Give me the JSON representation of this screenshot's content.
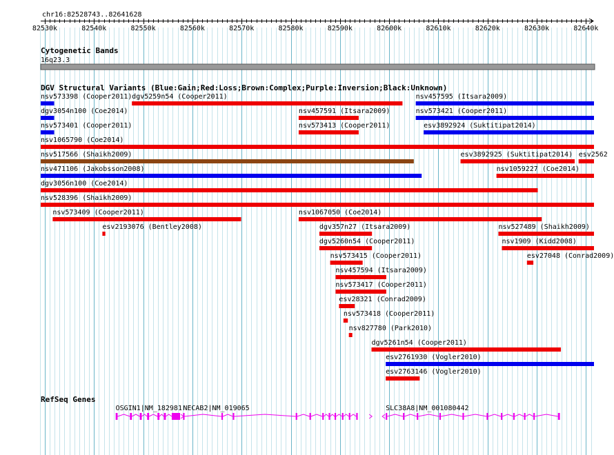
{
  "view": {
    "location": "chr16:82528743..82641628",
    "start": 82528743,
    "end": 82641628,
    "ruler_start": 82530000,
    "ruler_end": 82640000,
    "ruler_step": 10000,
    "ruler_labels": [
      "82530k",
      "82540k",
      "82550k",
      "82560k",
      "82570k",
      "82580k",
      "82590k",
      "82600k",
      "82610k",
      "82620k",
      "82630k",
      "82640k"
    ]
  },
  "colors": {
    "Gain": "#0000ee",
    "Loss": "#ee0000",
    "Complex": "#8b4513",
    "Inversion": "#800080",
    "Unknown": "#000000",
    "gene": "#ee00ee",
    "band": "#999999"
  },
  "tracks": {
    "cytoband": {
      "title": "Cytogenetic Bands",
      "band": "16q23.3"
    },
    "dgv": {
      "title": "DGV Structural Variants (Blue:Gain;Red:Loss;Brown:Complex;Purple:Inversion;Black:Unknown)",
      "features": [
        {
          "label": "nsv573398 (Cooper2011)",
          "start": 82528743,
          "end": 82531900,
          "type": "Gain",
          "row": 0
        },
        {
          "label": "dgv5259n54 (Cooper2011)",
          "start": 82547700,
          "end": 82602700,
          "type": "Loss",
          "row": 0
        },
        {
          "label": "nsv457595 (Itsara2009)",
          "start": 82605400,
          "end": 82641628,
          "type": "Gain",
          "row": 0
        },
        {
          "label": "dgv3054n100 (Coe2014)",
          "start": 82528743,
          "end": 82531900,
          "type": "Gain",
          "row": 1
        },
        {
          "label": "nsv457591 (Itsara2009)",
          "start": 82581600,
          "end": 82593800,
          "type": "Loss",
          "row": 1
        },
        {
          "label": "nsv573421 (Cooper2011)",
          "start": 82605400,
          "end": 82641628,
          "type": "Gain",
          "row": 1
        },
        {
          "label": "nsv573401 (Cooper2011)",
          "start": 82528743,
          "end": 82531900,
          "type": "Gain",
          "row": 2
        },
        {
          "label": "nsv573413 (Cooper2011)",
          "start": 82581600,
          "end": 82593800,
          "type": "Loss",
          "row": 2
        },
        {
          "label": "esv3892924 (Suktitipat2014)",
          "start": 82607000,
          "end": 82641628,
          "type": "Gain",
          "row": 2
        },
        {
          "label": "nsv1065790 (Coe2014)",
          "start": 82528743,
          "end": 82641628,
          "type": "Loss",
          "row": 3
        },
        {
          "label": "nsv517566 (Shaikh2009)",
          "start": 82528743,
          "end": 82605000,
          "type": "Complex",
          "row": 4
        },
        {
          "label": "esv3892925 (Suktitipat2014)",
          "start": 82614500,
          "end": 82637700,
          "type": "Loss",
          "row": 4
        },
        {
          "label": "esv2562",
          "start": 82638500,
          "end": 82641628,
          "type": "Loss",
          "row": 4
        },
        {
          "label": "nsv471106 (Jakobsson2008)",
          "start": 82528743,
          "end": 82606600,
          "type": "Gain",
          "row": 5
        },
        {
          "label": "nsv1059227 (Coe2014)",
          "start": 82621800,
          "end": 82641628,
          "type": "Loss",
          "row": 5
        },
        {
          "label": "dgv3056n100 (Coe2014)",
          "start": 82528743,
          "end": 82630200,
          "type": "Loss",
          "row": 6
        },
        {
          "label": "nsv528396 (Shaikh2009)",
          "start": 82528743,
          "end": 82641628,
          "type": "Loss",
          "row": 7
        },
        {
          "label": "nsv573409 (Cooper2011)",
          "start": 82531600,
          "end": 82569900,
          "type": "Loss",
          "row": 8
        },
        {
          "label": "nsv1067050 (Coe2014)",
          "start": 82581600,
          "end": 82631000,
          "type": "Loss",
          "row": 8
        },
        {
          "label": "esv2193076 (Bentley2008)",
          "start": 82541700,
          "end": 82542300,
          "type": "Loss",
          "row": 9
        },
        {
          "label": "dgv357n27 (Itsara2009)",
          "start": 82585800,
          "end": 82596500,
          "type": "Loss",
          "row": 9
        },
        {
          "label": "nsv527489 (Shaikh2009)",
          "start": 82622200,
          "end": 82641628,
          "type": "Loss",
          "row": 9
        },
        {
          "label": "dgv5260n54 (Cooper2011)",
          "start": 82585800,
          "end": 82596500,
          "type": "Loss",
          "row": 10
        },
        {
          "label": "nsv1909 (Kidd2008)",
          "start": 82622900,
          "end": 82641628,
          "type": "Loss",
          "row": 10
        },
        {
          "label": "nsv573415 (Cooper2011)",
          "start": 82588000,
          "end": 82594600,
          "type": "Loss",
          "row": 11
        },
        {
          "label": "esv27048 (Conrad2009)",
          "start": 82628000,
          "end": 82629300,
          "type": "Loss",
          "row": 11
        },
        {
          "label": "nsv457594 (Itsara2009)",
          "start": 82589100,
          "end": 82599400,
          "type": "Loss",
          "row": 12
        },
        {
          "label": "nsv573417 (Cooper2011)",
          "start": 82589100,
          "end": 82599400,
          "type": "Loss",
          "row": 13
        },
        {
          "label": "esv28321 (Conrad2009)",
          "start": 82589800,
          "end": 82593000,
          "type": "Loss",
          "row": 14
        },
        {
          "label": "nsv573418 (Cooper2011)",
          "start": 82590700,
          "end": 82591600,
          "type": "Loss",
          "row": 15
        },
        {
          "label": "nsv827780 (Park2010)",
          "start": 82591800,
          "end": 82592500,
          "type": "Loss",
          "row": 16
        },
        {
          "label": "dgv5261n54 (Cooper2011)",
          "start": 82596400,
          "end": 82634900,
          "type": "Loss",
          "row": 17
        },
        {
          "label": "esv2761930 (Vogler2010)",
          "start": 82599300,
          "end": 82641628,
          "type": "Gain",
          "row": 18
        },
        {
          "label": "esv2763146 (Vogler2010)",
          "start": 82599300,
          "end": 82606200,
          "type": "Loss",
          "row": 19
        }
      ]
    },
    "refseq": {
      "title": "RefSeq Genes",
      "genes": [
        {
          "label": "OSGIN1|NM_182981",
          "start": 82544400,
          "end": 82557500,
          "strand": "+",
          "exons": [
            [
              82544400,
              82544800
            ],
            [
              82547300,
              82547700
            ],
            [
              82549300,
              82549700
            ],
            [
              82550800,
              82551200
            ],
            [
              82552900,
              82553300
            ],
            [
              82554200,
              82554600
            ],
            [
              82555800,
              82557500
            ]
          ]
        },
        {
          "label": "NECAB2|NM_019065",
          "start": 82558100,
          "end": 82595800,
          "strand": "+",
          "exons": [
            [
              82558100,
              82558400
            ],
            [
              82565900,
              82566200
            ],
            [
              82568200,
              82568500
            ],
            [
              82581000,
              82581300
            ],
            [
              82583800,
              82584100
            ],
            [
              82586400,
              82586700
            ],
            [
              82587700,
              82588000
            ],
            [
              82588900,
              82589200
            ],
            [
              82590400,
              82590700
            ],
            [
              82591800,
              82592100
            ],
            [
              82593300,
              82593600
            ]
          ]
        },
        {
          "label": "SLC38A8|NM_001080442",
          "start": 82599300,
          "end": 82634700,
          "strand": "-",
          "exons": [
            [
              82599300,
              82599600
            ],
            [
              82602800,
              82603100
            ],
            [
              82605600,
              82605900
            ],
            [
              82610200,
              82610500
            ],
            [
              82614900,
              82615200
            ],
            [
              82619800,
              82620100
            ],
            [
              82622700,
              82623000
            ],
            [
              82625200,
              82625500
            ],
            [
              82627400,
              82627700
            ],
            [
              82629300,
              82629600
            ],
            [
              82634300,
              82634700
            ]
          ]
        }
      ]
    }
  }
}
